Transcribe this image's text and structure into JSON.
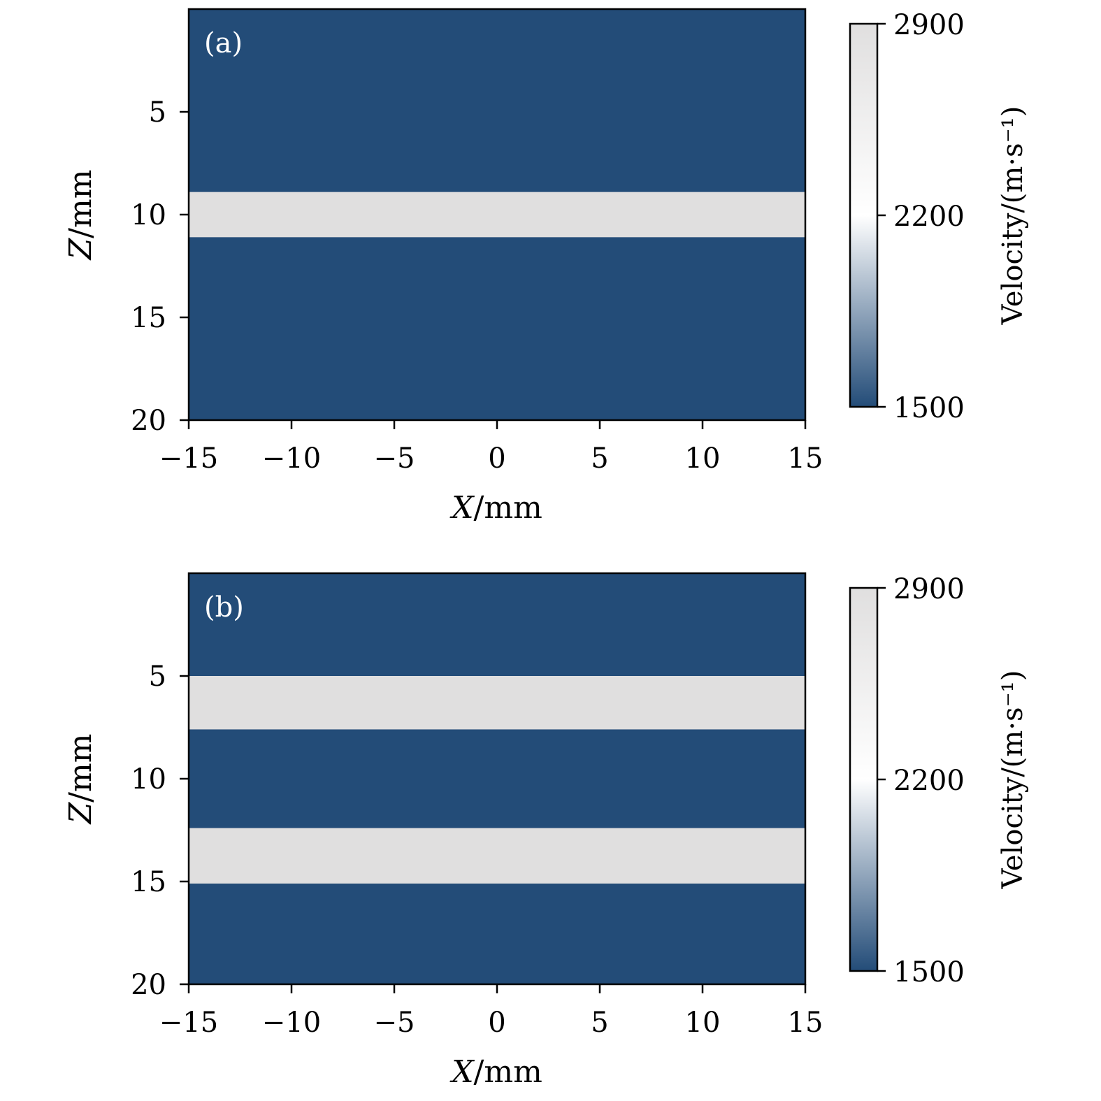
{
  "chart_data": [
    {
      "type": "heatmap",
      "panel_label": "(a)",
      "xlabel_var": "X",
      "xlabel_unit": "/mm",
      "ylabel_var": "Z",
      "ylabel_unit": "/mm",
      "xlim": [
        -15,
        15
      ],
      "ylim": [
        0,
        20
      ],
      "y_inverted": true,
      "x_ticks": [
        "−15",
        "−10",
        "−5",
        "0",
        "5",
        "10",
        "15"
      ],
      "x_tick_values": [
        -15,
        -10,
        -5,
        0,
        5,
        10,
        15
      ],
      "y_ticks": [
        "5",
        "10",
        "15",
        "20"
      ],
      "y_tick_values": [
        5,
        10,
        15,
        20
      ],
      "background_velocity": 1500,
      "layers": [
        {
          "z_top": 8.9,
          "z_bottom": 11.1,
          "velocity": 2900
        }
      ],
      "colorbar": {
        "label": "Velocity/(m·s⁻¹)",
        "min": 1500,
        "max": 2900,
        "ticks": [
          "1500",
          "2200",
          "2900"
        ],
        "tick_values": [
          1500,
          2200,
          2900
        ]
      }
    },
    {
      "type": "heatmap",
      "panel_label": "(b)",
      "xlabel_var": "X",
      "xlabel_unit": "/mm",
      "ylabel_var": "Z",
      "ylabel_unit": "/mm",
      "xlim": [
        -15,
        15
      ],
      "ylim": [
        0,
        20
      ],
      "y_inverted": true,
      "x_ticks": [
        "−15",
        "−10",
        "−5",
        "0",
        "5",
        "10",
        "15"
      ],
      "x_tick_values": [
        -15,
        -10,
        -5,
        0,
        5,
        10,
        15
      ],
      "y_ticks": [
        "5",
        "10",
        "15",
        "20"
      ],
      "y_tick_values": [
        5,
        10,
        15,
        20
      ],
      "background_velocity": 1500,
      "layers": [
        {
          "z_top": 5.0,
          "z_bottom": 7.6,
          "velocity": 2900
        },
        {
          "z_top": 12.4,
          "z_bottom": 15.1,
          "velocity": 2900
        }
      ],
      "colorbar": {
        "label": "Velocity/(m·s⁻¹)",
        "min": 1500,
        "max": 2900,
        "ticks": [
          "1500",
          "2200",
          "2900"
        ],
        "tick_values": [
          1500,
          2200,
          2900
        ]
      }
    }
  ],
  "colors": {
    "low": "#234c78",
    "mid": "#ffffff",
    "high": "#e0dfdf"
  }
}
